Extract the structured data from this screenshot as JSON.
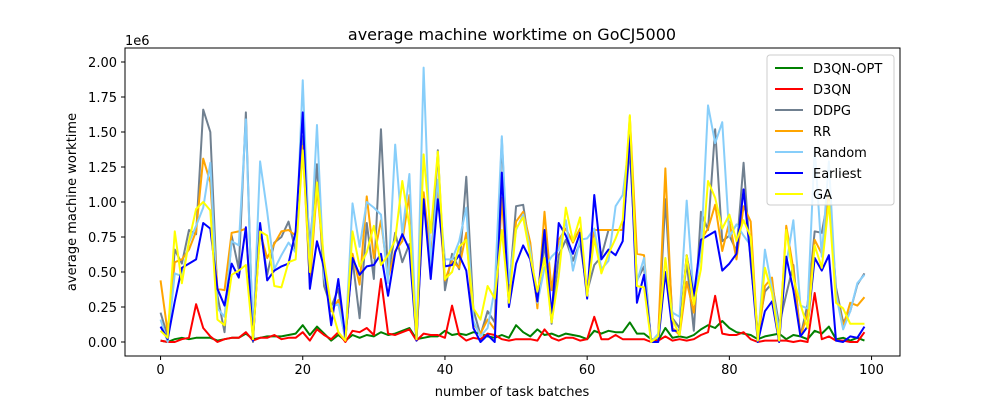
{
  "chart_data": {
    "type": "line",
    "title": "average machine worktime on GoCJ5000",
    "xlabel": "number of task batches",
    "ylabel": "average machine worktime",
    "y_offset_label": "1e6",
    "xlim": [
      -5,
      104
    ],
    "ylim": [
      -0.1,
      2.1
    ],
    "y_scale_unit": "1e6",
    "grid": false,
    "legend_position": "top-right",
    "x_ticks": [
      0,
      20,
      40,
      60,
      80,
      100
    ],
    "y_ticks": [
      0.0,
      0.25,
      0.5,
      0.75,
      1.0,
      1.25,
      1.5,
      1.75,
      2.0
    ],
    "y_tick_labels": [
      "0.00",
      "0.25",
      "0.50",
      "0.75",
      "1.00",
      "1.25",
      "1.50",
      "1.75",
      "2.00"
    ],
    "x": [
      0,
      1,
      2,
      3,
      4,
      5,
      6,
      7,
      8,
      9,
      10,
      11,
      12,
      13,
      14,
      15,
      16,
      17,
      18,
      19,
      20,
      21,
      22,
      23,
      24,
      25,
      26,
      27,
      28,
      29,
      30,
      31,
      32,
      33,
      34,
      35,
      36,
      37,
      38,
      39,
      40,
      41,
      42,
      43,
      44,
      45,
      46,
      47,
      48,
      49,
      50,
      51,
      52,
      53,
      54,
      55,
      56,
      57,
      58,
      59,
      60,
      61,
      62,
      63,
      64,
      65,
      66,
      67,
      68,
      69,
      70,
      71,
      72,
      73,
      74,
      75,
      76,
      77,
      78,
      79,
      80,
      81,
      82,
      83,
      84,
      85,
      86,
      87,
      88,
      89,
      90,
      91,
      92,
      93,
      94,
      95,
      96,
      97,
      98,
      99
    ],
    "series": [
      {
        "name": "D3QN-OPT",
        "color": "#008000",
        "values": [
          0.01,
          0.0,
          0.02,
          0.03,
          0.02,
          0.03,
          0.03,
          0.03,
          0.01,
          0.02,
          0.03,
          0.03,
          0.06,
          0.02,
          0.03,
          0.04,
          0.04,
          0.04,
          0.05,
          0.06,
          0.12,
          0.05,
          0.11,
          0.06,
          0.01,
          0.05,
          0.01,
          0.05,
          0.03,
          0.05,
          0.04,
          0.07,
          0.05,
          0.06,
          0.08,
          0.1,
          0.02,
          0.03,
          0.04,
          0.04,
          0.08,
          0.05,
          0.06,
          0.05,
          0.07,
          0.06,
          0.04,
          0.03,
          0.05,
          0.03,
          0.12,
          0.07,
          0.04,
          0.09,
          0.05,
          0.06,
          0.04,
          0.06,
          0.05,
          0.04,
          0.02,
          0.08,
          0.06,
          0.08,
          0.07,
          0.07,
          0.14,
          0.06,
          0.06,
          0.02,
          0.01,
          0.1,
          0.03,
          0.04,
          0.03,
          0.05,
          0.09,
          0.12,
          0.1,
          0.15,
          0.1,
          0.07,
          0.06,
          0.05,
          0.02,
          0.04,
          0.05,
          0.06,
          0.02,
          0.05,
          0.04,
          0.02,
          0.08,
          0.06,
          0.11,
          0.02,
          0.03,
          0.01,
          0.03,
          0.01
        ]
      },
      {
        "name": "D3QN",
        "color": "#ff0000",
        "values": [
          0.01,
          0.0,
          0.0,
          0.02,
          0.03,
          0.27,
          0.1,
          0.04,
          0.0,
          0.02,
          0.03,
          0.03,
          0.07,
          0.01,
          0.03,
          0.03,
          0.05,
          0.02,
          0.03,
          0.03,
          0.07,
          0.01,
          0.09,
          0.05,
          0.02,
          0.07,
          0.0,
          0.08,
          0.07,
          0.1,
          0.05,
          0.45,
          0.06,
          0.05,
          0.07,
          0.09,
          0.01,
          0.06,
          0.05,
          0.05,
          0.03,
          0.26,
          0.05,
          0.01,
          0.03,
          0.02,
          0.06,
          0.05,
          0.02,
          0.01,
          0.02,
          0.02,
          0.02,
          0.01,
          0.09,
          0.03,
          0.01,
          0.03,
          0.03,
          0.01,
          0.02,
          0.18,
          0.02,
          0.02,
          0.05,
          0.02,
          0.02,
          0.02,
          0.02,
          0.0,
          0.01,
          0.04,
          0.01,
          0.02,
          0.01,
          0.02,
          0.05,
          0.07,
          0.33,
          0.06,
          0.05,
          0.05,
          0.07,
          0.02,
          0.0,
          0.01,
          0.01,
          0.01,
          0.01,
          0.0,
          0.01,
          0.0,
          0.35,
          0.02,
          0.04,
          0.01,
          0.01,
          0.0,
          0.0,
          0.07
        ]
      },
      {
        "name": "DDPG",
        "color": "#708090",
        "values": [
          0.21,
          0.04,
          0.66,
          0.56,
          0.8,
          0.77,
          1.66,
          1.5,
          0.33,
          0.07,
          0.76,
          0.52,
          1.64,
          0.0,
          0.83,
          0.48,
          0.71,
          0.75,
          0.86,
          0.65,
          1.47,
          0.69,
          1.27,
          0.4,
          0.25,
          0.38,
          0.03,
          0.59,
          0.17,
          0.85,
          0.45,
          1.52,
          0.47,
          0.78,
          0.57,
          0.7,
          0.04,
          1.05,
          0.52,
          1.37,
          0.37,
          0.63,
          0.52,
          1.18,
          0.23,
          0.05,
          0.22,
          0.14,
          1.45,
          0.35,
          0.97,
          0.98,
          0.64,
          0.27,
          0.71,
          0.13,
          0.62,
          0.73,
          0.58,
          0.71,
          0.36,
          0.55,
          0.61,
          0.8,
          0.8,
          0.8,
          1.38,
          0.44,
          0.54,
          0.0,
          0.04,
          1.02,
          0.17,
          0.1,
          0.57,
          0.08,
          0.93,
          0.8,
          1.52,
          0.72,
          0.76,
          0.65,
          1.28,
          0.56,
          0.07,
          0.36,
          0.42,
          0.12,
          0.34,
          0.55,
          0.04,
          0.27,
          0.79,
          0.78,
          1.06,
          0.39,
          0.14,
          0.22,
          0.41,
          0.49
        ]
      },
      {
        "name": "RR",
        "color": "#ffa500",
        "values": [
          0.44,
          0.07,
          0.57,
          0.59,
          0.66,
          0.79,
          1.31,
          1.14,
          0.38,
          0.37,
          0.78,
          0.79,
          0.81,
          0.05,
          0.78,
          0.6,
          0.7,
          0.79,
          0.8,
          0.76,
          1.4,
          0.42,
          1.1,
          0.56,
          0.22,
          0.3,
          0.01,
          0.63,
          0.41,
          1.04,
          0.6,
          0.87,
          0.46,
          0.65,
          0.72,
          1.05,
          0.01,
          1.07,
          0.61,
          1.09,
          0.44,
          0.58,
          0.53,
          0.78,
          0.13,
          0.06,
          0.16,
          0.09,
          1.03,
          0.28,
          0.86,
          0.93,
          0.71,
          0.24,
          0.93,
          0.37,
          0.73,
          0.81,
          0.71,
          0.81,
          0.34,
          0.8,
          0.8,
          0.8,
          0.8,
          0.8,
          1.61,
          0.63,
          0.62,
          0.0,
          0.05,
          1.24,
          0.1,
          0.05,
          0.43,
          0.21,
          0.73,
          0.81,
          0.98,
          0.65,
          0.86,
          0.59,
          0.97,
          0.86,
          0.0,
          0.4,
          0.46,
          0.0,
          0.83,
          0.52,
          0.04,
          0.2,
          0.73,
          0.63,
          1.08,
          0.35,
          0.11,
          0.28,
          0.26,
          0.32
        ]
      },
      {
        "name": "Random",
        "color": "#87cefa",
        "values": [
          0.16,
          0.0,
          0.49,
          0.47,
          0.71,
          0.83,
          0.96,
          1.28,
          0.24,
          0.18,
          0.72,
          0.69,
          1.59,
          0.02,
          1.29,
          0.93,
          0.52,
          0.62,
          0.71,
          0.64,
          1.87,
          0.55,
          1.55,
          0.46,
          0.25,
          0.27,
          0.02,
          0.99,
          0.68,
          1.0,
          0.96,
          0.91,
          0.42,
          1.41,
          0.77,
          1.2,
          0.01,
          1.96,
          0.54,
          1.16,
          0.59,
          0.59,
          0.72,
          0.96,
          0.15,
          0.04,
          0.1,
          0.38,
          1.47,
          0.42,
          0.8,
          0.91,
          0.66,
          0.28,
          0.53,
          0.61,
          0.66,
          0.87,
          0.51,
          0.73,
          0.74,
          0.81,
          0.52,
          0.58,
          0.97,
          1.05,
          1.46,
          0.43,
          0.6,
          0.0,
          0.06,
          0.49,
          0.21,
          0.18,
          1.01,
          0.31,
          0.64,
          1.69,
          1.42,
          1.57,
          0.75,
          0.84,
          0.76,
          0.69,
          0.0,
          0.66,
          0.38,
          0.08,
          0.55,
          0.87,
          0.26,
          0.24,
          1.39,
          0.61,
          1.29,
          0.34,
          0.09,
          0.22,
          0.42,
          0.48
        ]
      },
      {
        "name": "Earliest",
        "color": "#0000ff",
        "values": [
          0.11,
          0.02,
          0.29,
          0.53,
          0.56,
          0.59,
          0.85,
          0.81,
          0.38,
          0.26,
          0.56,
          0.46,
          0.82,
          0.01,
          0.85,
          0.44,
          0.51,
          0.54,
          0.56,
          0.79,
          1.64,
          0.38,
          0.72,
          0.53,
          0.12,
          0.45,
          0.03,
          0.6,
          0.48,
          0.54,
          0.55,
          0.63,
          0.33,
          0.64,
          0.77,
          0.66,
          0.01,
          1.02,
          0.45,
          1.02,
          0.54,
          0.55,
          0.62,
          0.51,
          0.1,
          0.0,
          0.05,
          0.0,
          1.21,
          0.25,
          0.56,
          0.69,
          0.59,
          0.29,
          0.8,
          0.19,
          0.85,
          0.76,
          0.63,
          0.78,
          0.31,
          1.05,
          0.59,
          0.66,
          0.62,
          0.72,
          1.49,
          0.28,
          0.48,
          0.0,
          0.0,
          0.5,
          0.08,
          0.08,
          0.62,
          0.33,
          0.73,
          0.76,
          0.79,
          0.51,
          0.56,
          0.63,
          1.09,
          0.59,
          0.0,
          0.22,
          0.29,
          0.0,
          0.61,
          0.37,
          0.04,
          0.11,
          0.6,
          0.51,
          0.62,
          0.01,
          0.0,
          0.04,
          0.03,
          0.11
        ]
      },
      {
        "name": "GA",
        "color": "#ffff00",
        "values": [
          0.08,
          0.03,
          0.79,
          0.42,
          0.72,
          0.95,
          1.0,
          0.94,
          0.16,
          0.12,
          0.48,
          0.51,
          0.55,
          0.02,
          0.79,
          0.76,
          0.4,
          0.39,
          0.57,
          0.59,
          1.37,
          0.5,
          1.14,
          0.58,
          0.25,
          0.07,
          0.01,
          0.79,
          0.54,
          0.64,
          0.83,
          0.55,
          0.62,
          0.73,
          1.15,
          0.83,
          0.02,
          1.34,
          0.78,
          1.36,
          0.45,
          0.5,
          0.68,
          0.73,
          0.24,
          0.16,
          0.4,
          0.31,
          0.8,
          0.28,
          0.81,
          0.89,
          0.61,
          0.36,
          0.6,
          0.14,
          0.47,
          0.96,
          0.72,
          0.89,
          0.33,
          0.74,
          0.49,
          0.63,
          0.74,
          0.87,
          1.62,
          0.4,
          0.39,
          0.0,
          0.04,
          0.6,
          0.16,
          0.05,
          0.62,
          0.27,
          0.52,
          1.15,
          1.03,
          0.81,
          0.91,
          0.72,
          0.87,
          0.75,
          0.01,
          0.53,
          0.35,
          0.01,
          0.8,
          0.46,
          0.27,
          0.1,
          0.69,
          0.53,
          1.0,
          0.28,
          0.24,
          0.13,
          0.13,
          0.13
        ]
      }
    ]
  }
}
